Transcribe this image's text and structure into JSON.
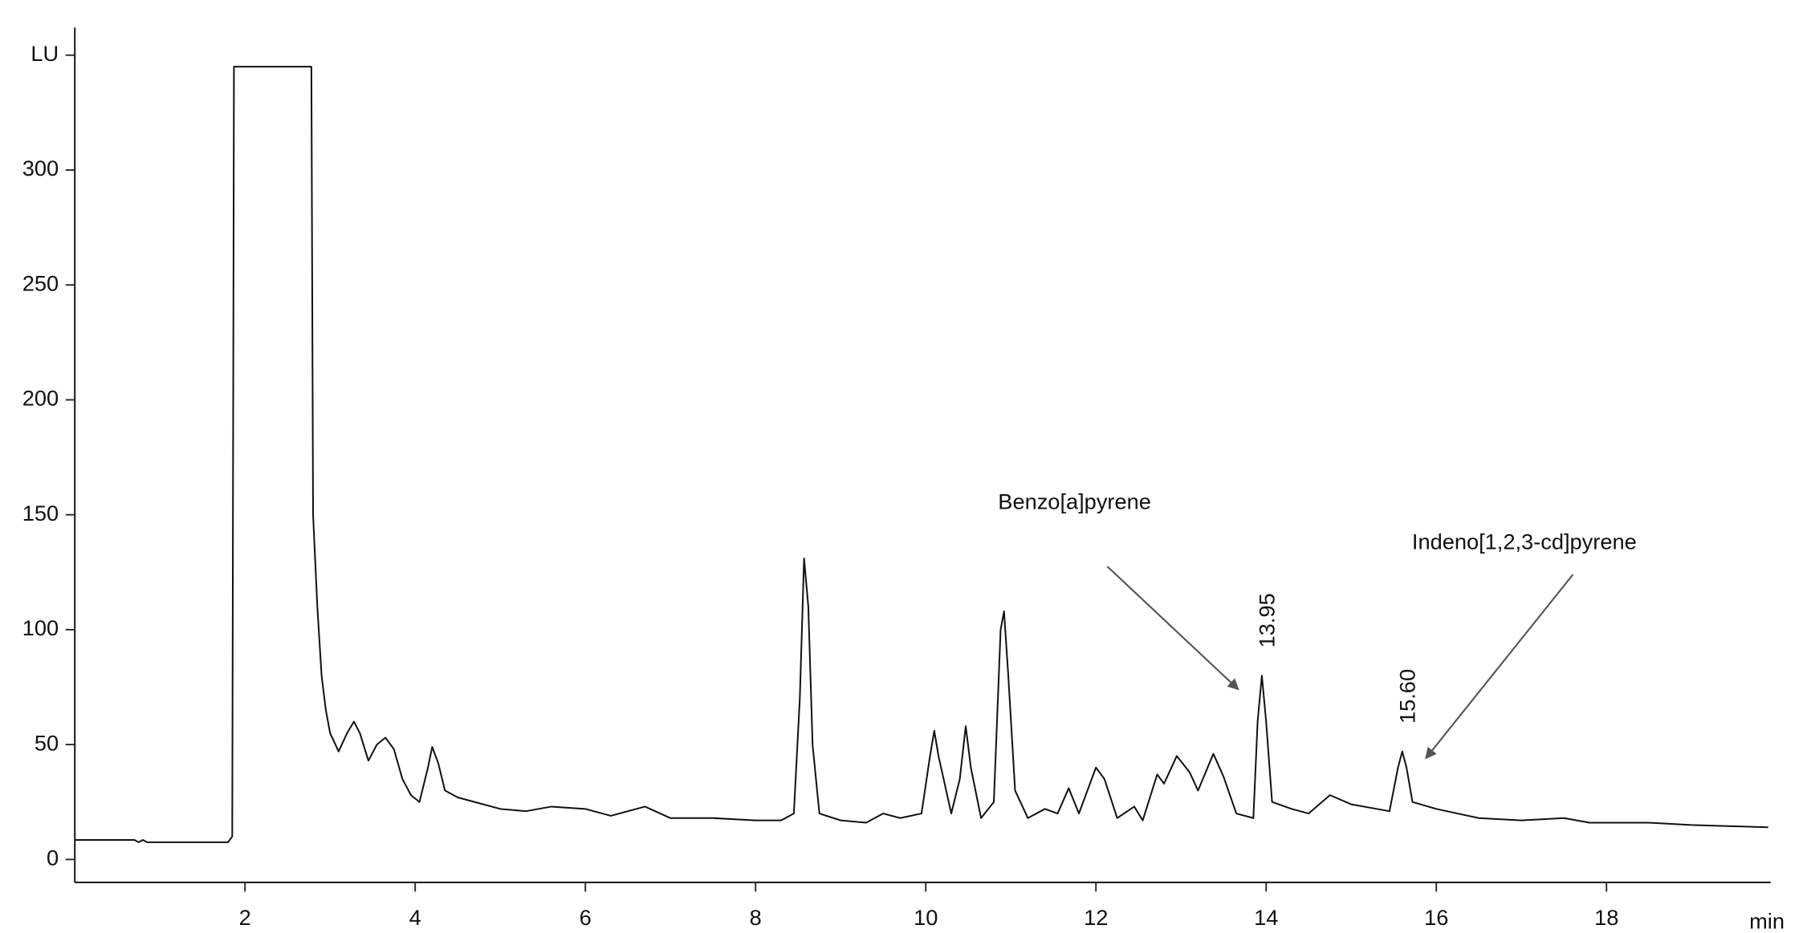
{
  "chart_data": {
    "type": "line",
    "x_label": "min",
    "xlim": [
      0,
      19.93
    ],
    "ylim": [
      -10,
      362
    ],
    "xticks": [
      2,
      4,
      6,
      8,
      10,
      12,
      14,
      16,
      18
    ],
    "yticks": [
      0,
      50,
      100,
      150,
      200,
      250,
      300,
      {
        "value": 350,
        "label": "LU"
      }
    ],
    "series": [
      {
        "color": "#111111",
        "x": [
          0,
          0.7,
          0.75,
          0.8,
          0.85,
          1.8,
          1.85,
          1.87,
          2.78,
          2.8,
          2.85,
          2.9,
          2.95,
          3.0,
          3.1,
          3.2,
          3.28,
          3.35,
          3.45,
          3.55,
          3.65,
          3.75,
          3.85,
          3.95,
          4.05,
          4.15,
          4.2,
          4.27,
          4.35,
          4.5,
          4.7,
          5.0,
          5.3,
          5.6,
          6.0,
          6.3,
          6.7,
          7.0,
          7.5,
          8.0,
          8.3,
          8.45,
          8.52,
          8.57,
          8.62,
          8.67,
          8.75,
          9.0,
          9.3,
          9.5,
          9.7,
          9.95,
          10.05,
          10.1,
          10.15,
          10.3,
          10.4,
          10.47,
          10.53,
          10.65,
          10.8,
          10.88,
          10.92,
          10.97,
          11.05,
          11.2,
          11.4,
          11.55,
          11.68,
          11.8,
          12.0,
          12.1,
          12.25,
          12.45,
          12.55,
          12.72,
          12.8,
          12.95,
          13.1,
          13.2,
          13.38,
          13.5,
          13.65,
          13.85,
          13.9,
          13.95,
          14.0,
          14.07,
          14.3,
          14.5,
          14.75,
          15.0,
          15.3,
          15.45,
          15.55,
          15.6,
          15.65,
          15.72,
          16.0,
          16.5,
          17.0,
          17.5,
          17.8,
          18.5,
          19.0,
          19.9
        ],
        "values": [
          8.5,
          8.5,
          7.5,
          8.5,
          7.5,
          7.5,
          10,
          345,
          345,
          150,
          110,
          80,
          65,
          55,
          47,
          55,
          60,
          55,
          43,
          50,
          53,
          48,
          35,
          28,
          25,
          40,
          49,
          42,
          30,
          27,
          25,
          22,
          21,
          23,
          22,
          19,
          23,
          18,
          18,
          17,
          17,
          20,
          70,
          131,
          110,
          50,
          20,
          17,
          16,
          20,
          18,
          20,
          45,
          56,
          45,
          20,
          35,
          58,
          40,
          18,
          25,
          100,
          108,
          80,
          30,
          18,
          22,
          20,
          31,
          20,
          40,
          35,
          18,
          23,
          17,
          37,
          33,
          45,
          38,
          30,
          46,
          36,
          20,
          18,
          60,
          80,
          60,
          25,
          22,
          20,
          28,
          24,
          22,
          21,
          40,
          47,
          40,
          25,
          22,
          18,
          17,
          18,
          16,
          16,
          15,
          14
        ]
      }
    ],
    "annotations": [
      {
        "text": "Benzo[a]pyrene",
        "peak": {
          "value": 13.95,
          "label": "13.95"
        }
      },
      {
        "text": "Indeno[1,2,3-cd]pyrene",
        "peak": {
          "value": 15.6,
          "label": "15.60"
        }
      }
    ]
  }
}
